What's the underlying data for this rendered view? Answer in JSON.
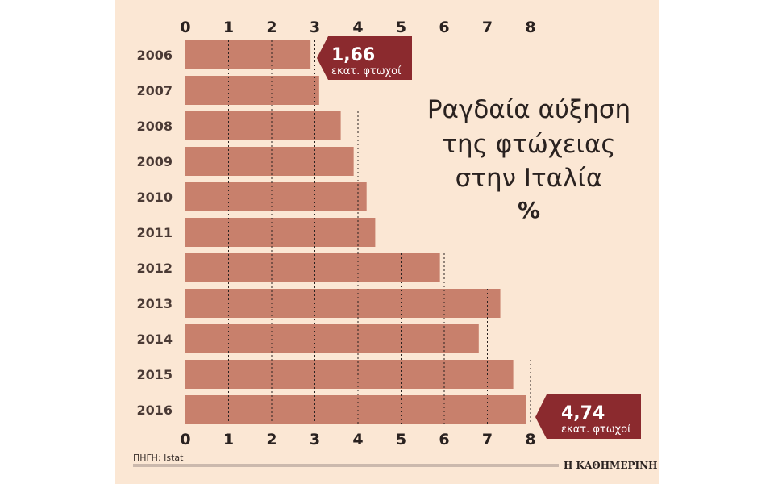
{
  "colors": {
    "background": "#fbe7d4",
    "bar": "#c8806c",
    "callout": "#8b2a2e",
    "text": "#2a2220",
    "rule": "#cbb9ad"
  },
  "chart_data": {
    "type": "bar",
    "orientation": "horizontal",
    "title_lines": [
      "Ραγδαία αύξηση",
      "της φτώχειας",
      "στην Ιταλία"
    ],
    "unit_label": "%",
    "categories": [
      "2006",
      "2007",
      "2008",
      "2009",
      "2010",
      "2011",
      "2012",
      "2013",
      "2014",
      "2015",
      "2016"
    ],
    "values": [
      2.9,
      3.1,
      3.6,
      3.9,
      4.2,
      4.4,
      5.9,
      7.3,
      6.8,
      7.6,
      7.9
    ],
    "xlim": [
      0,
      8
    ],
    "xticks": [
      "0",
      "1",
      "2",
      "3",
      "4",
      "5",
      "6",
      "7",
      "8"
    ],
    "xlabel": "",
    "ylabel": "",
    "gridlines": "dotted, per bar",
    "annotations": [
      {
        "category": "2006",
        "value_text": "1,66",
        "unit_text": "εκατ. φτωχοί"
      },
      {
        "category": "2016",
        "value_text": "4,74",
        "unit_text": "εκατ. φτωχοί"
      }
    ],
    "source": "ΠΗΓΗ: Istat",
    "brand": "Η ΚΑΘΗΜΕΡΙΝΗ"
  }
}
